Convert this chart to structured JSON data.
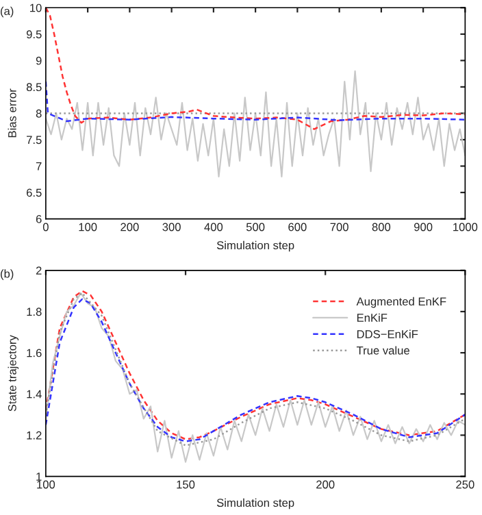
{
  "chart_data": [
    {
      "type": "line",
      "annotations": [
        "(a)"
      ],
      "xlabel": "Simulation step",
      "ylabel": "Bias error",
      "xlim": [
        0,
        1000
      ],
      "xticks": [
        0,
        100,
        200,
        300,
        400,
        500,
        600,
        700,
        800,
        900,
        1000
      ],
      "ylim": [
        6,
        10
      ],
      "yticks": [
        6,
        6.5,
        7,
        7.5,
        8,
        8.5,
        9,
        9.5,
        10
      ],
      "grid": false,
      "legend": false,
      "series": [
        {
          "color": "#c8c8c8",
          "line_style": "solid",
          "x": [
            0,
            12.5,
            25,
            37.5,
            50,
            62.5,
            75,
            87.5,
            100,
            112.5,
            125,
            137.5,
            150,
            162.5,
            175,
            187.5,
            200,
            212.5,
            225,
            237.5,
            250,
            262.5,
            275,
            287.5,
            300,
            312.5,
            325,
            337.5,
            350,
            362.5,
            375,
            387.5,
            400,
            412.5,
            425,
            437.5,
            450,
            462.5,
            475,
            487.5,
            500,
            512.5,
            525,
            537.5,
            550,
            562.5,
            575,
            587.5,
            600,
            612.5,
            625,
            637.5,
            650,
            662.5,
            675,
            687.5,
            700,
            712.5,
            725,
            737.5,
            750,
            762.5,
            775,
            787.5,
            800,
            812.5,
            825,
            837.5,
            850,
            862.5,
            875,
            887.5,
            900,
            912.5,
            925,
            937.5,
            950,
            962.5,
            975,
            987.5,
            1000
          ],
          "values": [
            7.9,
            7.6,
            8.0,
            7.5,
            7.9,
            7.7,
            8.2,
            7.3,
            8.2,
            7.2,
            8.2,
            7.4,
            8.1,
            7.2,
            7.0,
            8.0,
            7.4,
            8.2,
            7.2,
            8.1,
            7.6,
            8.3,
            7.5,
            8.0,
            7.7,
            7.4,
            8.2,
            7.3,
            7.9,
            7.1,
            7.8,
            7.2,
            7.9,
            6.8,
            7.7,
            7.0,
            8.0,
            7.1,
            8.3,
            7.3,
            8.0,
            7.2,
            8.4,
            7.0,
            7.9,
            6.8,
            8.2,
            7.0,
            8.0,
            7.2,
            8.1,
            7.4,
            7.9,
            7.2,
            7.6,
            7.9,
            7.0,
            8.6,
            7.5,
            8.8,
            7.6,
            8.2,
            6.9,
            8.0,
            7.5,
            8.2,
            7.4,
            8.1,
            7.7,
            8.2,
            7.6,
            8.3,
            7.5,
            7.8,
            7.3,
            7.9,
            7.0,
            7.8,
            7.3,
            7.7,
            7.2
          ]
        },
        {
          "color": "#999999",
          "line_style": "dotted",
          "x": [
            0,
            1000
          ],
          "values": [
            8.0,
            8.0
          ]
        },
        {
          "color": "#ff3333",
          "line_style": "dashed",
          "x": [
            0,
            10,
            20,
            30,
            40,
            50,
            60,
            70,
            85,
            100,
            150,
            200,
            250,
            300,
            340,
            360,
            400,
            450,
            500,
            550,
            600,
            640,
            680,
            720,
            760,
            800,
            850,
            900,
            950,
            1000
          ],
          "values": [
            10,
            9.85,
            9.5,
            9.1,
            8.7,
            8.4,
            8.15,
            7.95,
            7.82,
            7.9,
            7.92,
            7.88,
            7.92,
            8.0,
            8.03,
            8.07,
            7.95,
            7.92,
            7.9,
            7.92,
            7.88,
            7.7,
            7.85,
            7.88,
            7.95,
            7.93,
            7.97,
            7.96,
            8.0,
            7.98
          ]
        },
        {
          "color": "#3333ff",
          "line_style": "dashed",
          "x": [
            0,
            5,
            20,
            50,
            100,
            200,
            300,
            400,
            500,
            600,
            700,
            800,
            900,
            1000
          ],
          "values": [
            8.6,
            8.0,
            7.95,
            7.85,
            7.9,
            7.88,
            7.93,
            7.9,
            7.88,
            7.92,
            7.87,
            7.9,
            7.9,
            7.88
          ]
        }
      ]
    },
    {
      "type": "line",
      "annotations": [
        "(b)"
      ],
      "xlabel": "Simulation step",
      "ylabel": "State trajectory",
      "xlim": [
        100,
        250
      ],
      "xticks": [
        100,
        150,
        200,
        250
      ],
      "ylim": [
        1,
        2
      ],
      "yticks": [
        1,
        1.2,
        1.4,
        1.6,
        1.8,
        2
      ],
      "grid": false,
      "legend": "top right",
      "series": [
        {
          "name": "Augmented EnKF",
          "color": "#ff3333",
          "line_style": "dashed",
          "x": [
            100,
            105,
            110,
            113,
            116,
            120,
            125,
            130,
            135,
            140,
            145,
            150,
            155,
            160,
            170,
            180,
            190,
            195,
            200,
            210,
            220,
            230,
            240,
            250
          ],
          "values": [
            1.32,
            1.72,
            1.87,
            1.9,
            1.88,
            1.8,
            1.65,
            1.5,
            1.37,
            1.27,
            1.21,
            1.18,
            1.19,
            1.22,
            1.29,
            1.35,
            1.38,
            1.37,
            1.35,
            1.29,
            1.23,
            1.2,
            1.22,
            1.3
          ]
        },
        {
          "name": "EnKiF",
          "color": "#c8c8c8",
          "line_style": "solid",
          "x": [
            100,
            102.5,
            105,
            107.5,
            110,
            112.5,
            115,
            117.5,
            120,
            122.5,
            125,
            127.5,
            130,
            132.5,
            135,
            137.5,
            140,
            142.5,
            145,
            147.5,
            150,
            152.5,
            155,
            157.5,
            160,
            162.5,
            165,
            167.5,
            170,
            172.5,
            175,
            177.5,
            180,
            182.5,
            185,
            187.5,
            190,
            192.5,
            195,
            197.5,
            200,
            202.5,
            205,
            207.5,
            210,
            212.5,
            215,
            217.5,
            220,
            222.5,
            225,
            227.5,
            230,
            232.5,
            235,
            237.5,
            240,
            242.5,
            245,
            247.5,
            250
          ],
          "values": [
            1.28,
            1.55,
            1.68,
            1.8,
            1.83,
            1.89,
            1.84,
            1.82,
            1.72,
            1.68,
            1.56,
            1.52,
            1.4,
            1.42,
            1.28,
            1.34,
            1.12,
            1.27,
            1.09,
            1.22,
            1.07,
            1.2,
            1.08,
            1.21,
            1.1,
            1.24,
            1.13,
            1.27,
            1.17,
            1.3,
            1.2,
            1.33,
            1.22,
            1.35,
            1.24,
            1.37,
            1.25,
            1.37,
            1.25,
            1.36,
            1.24,
            1.34,
            1.22,
            1.32,
            1.2,
            1.29,
            1.18,
            1.27,
            1.17,
            1.25,
            1.16,
            1.24,
            1.16,
            1.23,
            1.17,
            1.25,
            1.18,
            1.26,
            1.2,
            1.27,
            1.25
          ]
        },
        {
          "name": "DDS−EnKiF",
          "color": "#3333ff",
          "line_style": "dashed",
          "x": [
            100,
            105,
            110,
            113,
            116,
            120,
            125,
            130,
            135,
            140,
            145,
            150,
            155,
            160,
            170,
            180,
            190,
            195,
            200,
            210,
            220,
            230,
            240,
            250
          ],
          "values": [
            1.25,
            1.65,
            1.82,
            1.86,
            1.84,
            1.75,
            1.6,
            1.45,
            1.33,
            1.24,
            1.19,
            1.17,
            1.18,
            1.22,
            1.3,
            1.36,
            1.39,
            1.38,
            1.36,
            1.3,
            1.23,
            1.19,
            1.21,
            1.3
          ]
        },
        {
          "name": "True value",
          "color": "#999999",
          "line_style": "dotted",
          "x": [
            100,
            105,
            110,
            113,
            120,
            130,
            140,
            150,
            160,
            170,
            180,
            190,
            200,
            210,
            220,
            230,
            240,
            250
          ],
          "values": [
            1.3,
            1.7,
            1.86,
            1.89,
            1.78,
            1.45,
            1.22,
            1.15,
            1.18,
            1.26,
            1.33,
            1.36,
            1.33,
            1.27,
            1.2,
            1.17,
            1.2,
            1.28
          ]
        }
      ]
    }
  ]
}
